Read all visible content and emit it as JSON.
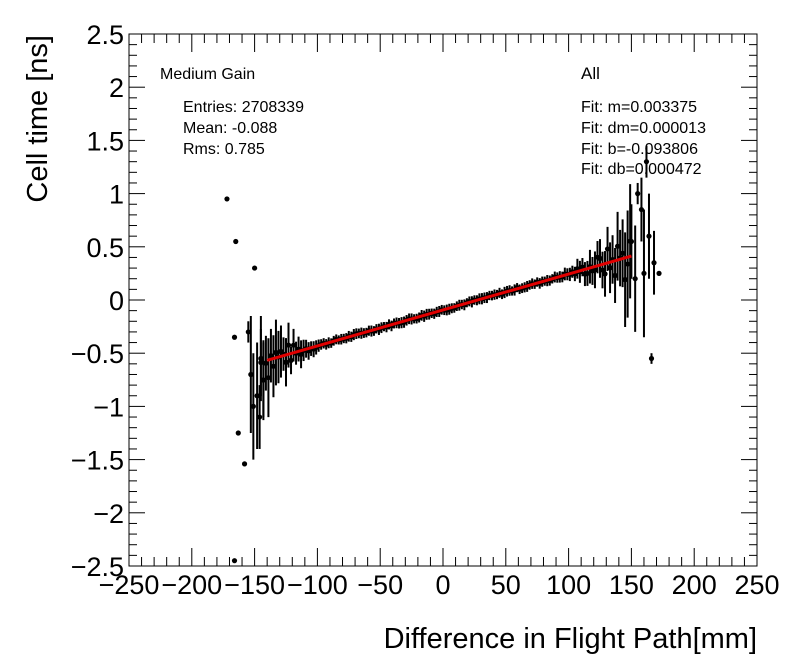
{
  "chart_data": {
    "type": "scatter",
    "xlabel": "Difference in Flight Path[mm]",
    "ylabel": "Cell time [ns]",
    "xlim": [
      -250,
      250
    ],
    "ylim": [
      -2.5,
      2.5
    ],
    "xticks": [
      -250,
      -200,
      -150,
      -100,
      -50,
      0,
      50,
      100,
      150,
      200,
      250
    ],
    "yticks": [
      -2.5,
      -2,
      -1.5,
      -1,
      -0.5,
      0,
      0.5,
      1,
      1.5,
      2,
      2.5
    ],
    "xtick_labels": [
      "−250",
      "−200",
      "−150",
      "−100",
      "−50",
      "0",
      "50",
      "100",
      "150",
      "200",
      "250"
    ],
    "ytick_labels": [
      "−2.5",
      "−2",
      "−1.5",
      "−1",
      "−0.5",
      "0",
      "0.5",
      "1",
      "1.5",
      "2",
      "2.5"
    ],
    "stats": {
      "title": "Medium Gain",
      "entries": "Entries: 2708339",
      "mean": "Mean: -0.088",
      "rms": "Rms: 0.785"
    },
    "fit_box": {
      "title": "All",
      "m": "Fit: m=0.003375",
      "dm": "Fit: dm=0.000013",
      "b": "Fit: b=-0.093806",
      "db": "Fit: db=0.000472"
    },
    "fit": {
      "slope": 0.003375,
      "intercept": -0.093806,
      "x_range": [
        -140,
        150
      ],
      "color": "#e00000"
    },
    "outliers": [
      {
        "x": -172,
        "y": 0.95,
        "err": 0.0
      },
      {
        "x": -165,
        "y": 0.55,
        "err": 0.0
      },
      {
        "x": -166,
        "y": -0.35,
        "err": 0.0
      },
      {
        "x": -163,
        "y": -1.25,
        "err": 0.0
      },
      {
        "x": -158,
        "y": -1.54,
        "err": 0.0
      },
      {
        "x": -166,
        "y": -2.45,
        "err": 0.0
      },
      {
        "x": -150,
        "y": 0.3,
        "err": 0.02
      },
      {
        "x": -155,
        "y": -0.3,
        "err": 0.1
      },
      {
        "x": -153,
        "y": -0.7,
        "err": 0.55
      },
      {
        "x": -151,
        "y": -1.0,
        "err": 0.5
      },
      {
        "x": -148,
        "y": -0.9,
        "err": 0.5
      },
      {
        "x": -146,
        "y": -1.1,
        "err": 0.3
      },
      {
        "x": -143,
        "y": -0.75,
        "err": 0.35
      },
      {
        "x": -145,
        "y": -0.55,
        "err": 0.4
      },
      {
        "x": 150,
        "y": 0.55,
        "err": 0.35
      },
      {
        "x": 153,
        "y": 0.2,
        "err": 0.5
      },
      {
        "x": 155,
        "y": 1.0,
        "err": 0.1
      },
      {
        "x": 158,
        "y": 0.85,
        "err": 0.3
      },
      {
        "x": 160,
        "y": 0.25,
        "err": 0.6
      },
      {
        "x": 162,
        "y": 1.3,
        "err": 0.15
      },
      {
        "x": 164,
        "y": 0.6,
        "err": 0.4
      },
      {
        "x": 166,
        "y": -0.55,
        "err": 0.05
      },
      {
        "x": 168,
        "y": 0.35,
        "err": 0.3
      },
      {
        "x": 172,
        "y": 0.25,
        "err": 0.0
      }
    ],
    "main_series": {
      "x_range": [
        -145,
        150
      ],
      "step": 2,
      "noise_edge": 0.35,
      "noise_mid": 0.015
    },
    "colors": {
      "points": "#000000",
      "frame": "#000000"
    }
  }
}
